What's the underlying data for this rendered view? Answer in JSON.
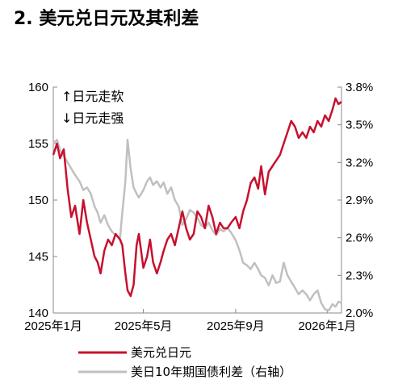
{
  "title": "2. 美元兑日元及其利差",
  "chart_data": {
    "type": "line",
    "title": "2. 美元兑日元及其利差",
    "x_tick_labels": [
      "2025年1月",
      "2025年5月",
      "2025年9月",
      "2026年1月"
    ],
    "y_left": {
      "ticks": [
        "160",
        "155",
        "150",
        "145",
        "140"
      ],
      "ylim": [
        140,
        160
      ]
    },
    "y_right": {
      "ticks": [
        "3.8%",
        "3.5%",
        "3.2%",
        "2.9%",
        "2.6%",
        "2.3%",
        "2.0%"
      ],
      "ylim": [
        2.0,
        3.8
      ]
    },
    "xlim": [
      "2025-01-01",
      "2026-01-20"
    ],
    "annotations": [
      "↑日元走软",
      "↓日元走强"
    ],
    "legend": [
      {
        "label": "美元兑日元",
        "color": "#c8102e"
      },
      {
        "label": "美日10年期国债利差（右轴）",
        "color": "#c0c0c0"
      }
    ],
    "grid": false,
    "series": [
      {
        "name": "美元兑日元",
        "axis": "left",
        "color": "#c8102e",
        "x": [
          "2025-01-01",
          "2025-01-06",
          "2025-01-10",
          "2025-01-15",
          "2025-01-20",
          "2025-01-25",
          "2025-01-30",
          "2025-02-05",
          "2025-02-10",
          "2025-02-15",
          "2025-02-20",
          "2025-02-25",
          "2025-03-01",
          "2025-03-05",
          "2025-03-10",
          "2025-03-15",
          "2025-03-20",
          "2025-03-25",
          "2025-03-31",
          "2025-04-03",
          "2025-04-07",
          "2025-04-10",
          "2025-04-14",
          "2025-04-18",
          "2025-04-22",
          "2025-04-25",
          "2025-05-01",
          "2025-05-06",
          "2025-05-10",
          "2025-05-14",
          "2025-05-19",
          "2025-05-24",
          "2025-05-28",
          "2025-06-02",
          "2025-06-07",
          "2025-06-12",
          "2025-06-17",
          "2025-06-22",
          "2025-06-27",
          "2025-07-02",
          "2025-07-07",
          "2025-07-12",
          "2025-07-17",
          "2025-07-22",
          "2025-07-27",
          "2025-08-01",
          "2025-08-06",
          "2025-08-11",
          "2025-08-16",
          "2025-08-21",
          "2025-08-26",
          "2025-09-01",
          "2025-09-06",
          "2025-09-11",
          "2025-09-16",
          "2025-09-21",
          "2025-09-26",
          "2025-10-01",
          "2025-10-05",
          "2025-10-10",
          "2025-10-15",
          "2025-10-20",
          "2025-10-25",
          "2025-10-30",
          "2025-11-04",
          "2025-11-09",
          "2025-11-14",
          "2025-11-19",
          "2025-11-24",
          "2025-11-29",
          "2025-12-04",
          "2025-12-09",
          "2025-12-14",
          "2025-12-19",
          "2025-12-24",
          "2025-12-29",
          "2026-01-03",
          "2026-01-08",
          "2026-01-12",
          "2026-01-16",
          "2026-01-20"
        ],
        "values": [
          154.0,
          155.0,
          153.7,
          154.5,
          151.0,
          148.5,
          149.5,
          147.0,
          150.0,
          148.0,
          146.5,
          145.0,
          144.5,
          143.5,
          145.5,
          146.5,
          146.0,
          147.0,
          146.5,
          146.0,
          143.5,
          142.0,
          141.5,
          142.5,
          146.0,
          147.0,
          144.0,
          145.0,
          146.5,
          144.5,
          143.5,
          144.5,
          145.5,
          146.5,
          147.0,
          146.0,
          147.5,
          149.0,
          147.5,
          146.5,
          147.0,
          149.0,
          148.5,
          147.5,
          149.5,
          148.5,
          147.0,
          148.0,
          147.5,
          147.5,
          148.0,
          148.5,
          147.5,
          149.0,
          150.0,
          151.5,
          152.0,
          151.0,
          153.0,
          150.5,
          152.5,
          153.0,
          153.5,
          154.0,
          155.0,
          156.0,
          157.0,
          156.5,
          155.5,
          156.0,
          155.5,
          156.5,
          156.0,
          157.0,
          156.5,
          157.5,
          157.0,
          158.0,
          159.0,
          158.5,
          158.7
        ]
      },
      {
        "name": "美日10年期国债利差（右轴）",
        "axis": "right",
        "color": "#c0c0c0",
        "x": [
          "2025-01-01",
          "2025-01-06",
          "2025-01-10",
          "2025-01-15",
          "2025-01-20",
          "2025-01-25",
          "2025-01-30",
          "2025-02-05",
          "2025-02-10",
          "2025-02-15",
          "2025-02-20",
          "2025-02-25",
          "2025-03-01",
          "2025-03-05",
          "2025-03-10",
          "2025-03-15",
          "2025-03-20",
          "2025-03-25",
          "2025-03-31",
          "2025-04-03",
          "2025-04-07",
          "2025-04-10",
          "2025-04-14",
          "2025-04-18",
          "2025-04-22",
          "2025-04-25",
          "2025-05-01",
          "2025-05-06",
          "2025-05-10",
          "2025-05-14",
          "2025-05-19",
          "2025-05-24",
          "2025-05-28",
          "2025-06-02",
          "2025-06-07",
          "2025-06-12",
          "2025-06-17",
          "2025-06-22",
          "2025-06-27",
          "2025-07-02",
          "2025-07-07",
          "2025-07-12",
          "2025-07-17",
          "2025-07-22",
          "2025-07-27",
          "2025-08-01",
          "2025-08-06",
          "2025-08-11",
          "2025-08-16",
          "2025-08-21",
          "2025-08-26",
          "2025-09-01",
          "2025-09-06",
          "2025-09-11",
          "2025-09-16",
          "2025-09-21",
          "2025-09-26",
          "2025-10-01",
          "2025-10-05",
          "2025-10-10",
          "2025-10-15",
          "2025-10-20",
          "2025-10-25",
          "2025-10-30",
          "2025-11-04",
          "2025-11-09",
          "2025-11-14",
          "2025-11-19",
          "2025-11-24",
          "2025-11-29",
          "2025-12-04",
          "2025-12-09",
          "2025-12-14",
          "2025-12-19",
          "2025-12-24",
          "2025-12-29",
          "2026-01-03",
          "2026-01-08",
          "2026-01-12",
          "2026-01-16",
          "2026-01-20"
        ],
        "values": [
          3.35,
          3.38,
          3.3,
          3.25,
          3.2,
          3.15,
          3.1,
          3.05,
          2.98,
          3.0,
          2.95,
          2.85,
          2.8,
          2.72,
          2.78,
          2.7,
          2.65,
          2.62,
          2.6,
          2.8,
          3.05,
          3.38,
          3.15,
          3.0,
          2.95,
          2.92,
          2.98,
          3.05,
          3.08,
          3.02,
          3.05,
          3.0,
          3.04,
          2.95,
          3.0,
          2.9,
          2.85,
          2.7,
          2.75,
          2.82,
          2.8,
          2.76,
          2.7,
          2.68,
          2.72,
          2.66,
          2.62,
          2.67,
          2.65,
          2.68,
          2.64,
          2.58,
          2.5,
          2.4,
          2.38,
          2.35,
          2.4,
          2.35,
          2.3,
          2.28,
          2.22,
          2.3,
          2.24,
          2.25,
          2.4,
          2.3,
          2.25,
          2.2,
          2.15,
          2.18,
          2.15,
          2.1,
          2.15,
          2.18,
          2.08,
          2.03,
          2.02,
          2.07,
          2.05,
          2.09,
          2.08
        ]
      }
    ]
  }
}
